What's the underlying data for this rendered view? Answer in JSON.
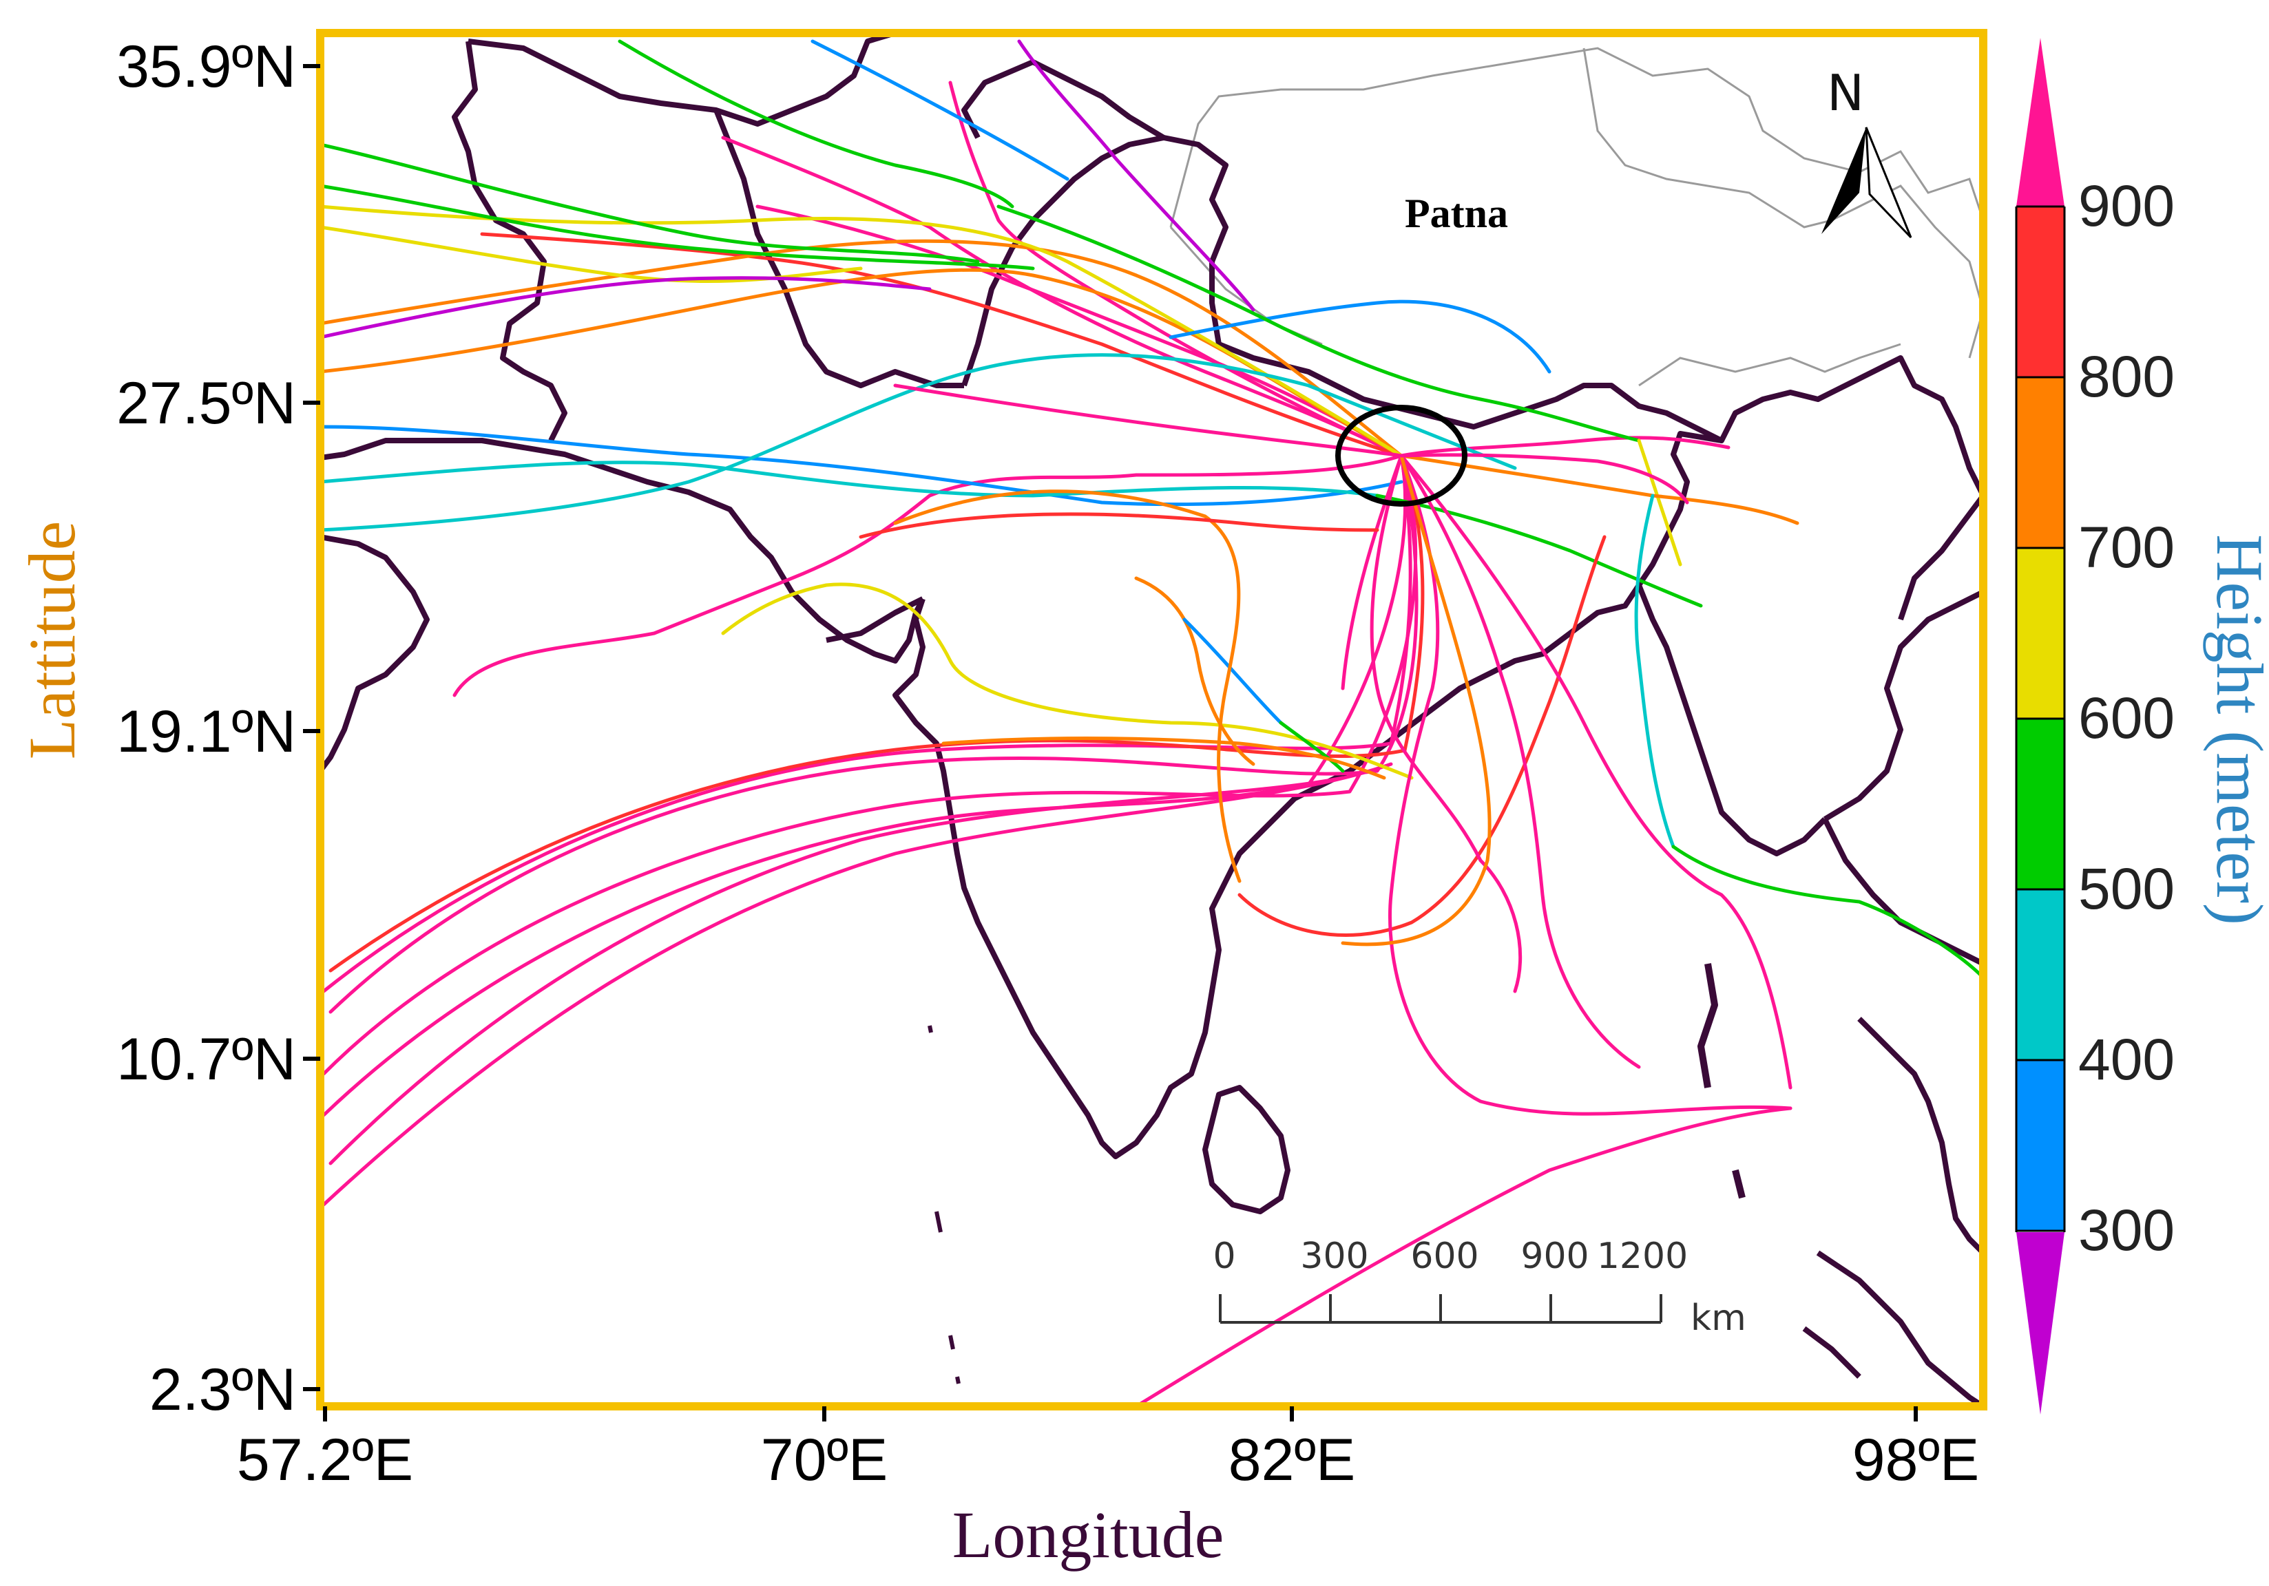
{
  "map": {
    "place_label": "Patna",
    "north_label": "N",
    "frame_color": "#F5C000",
    "coast_color": "#3A0A38",
    "border_color": "#9a9a9a"
  },
  "axes": {
    "y_title": "Lattitude",
    "x_title": "Longitude",
    "y_ticks": [
      "35.9ºN",
      "27.5ºN",
      "19.1ºN",
      "10.7ºN",
      "2.3ºN"
    ],
    "x_ticks": [
      "57.2ºE",
      "70ºE",
      "82ºE",
      "98ºE"
    ],
    "title_color": "#D98500"
  },
  "scale_bar": {
    "labels": [
      "0",
      "300",
      "600",
      "900",
      "1200"
    ],
    "unit": "km"
  },
  "colorbar": {
    "title": "Height (meter)",
    "title_color": "#2E86C1",
    "labels": [
      "900",
      "800",
      "700",
      "600",
      "500",
      "400",
      "300"
    ],
    "colors": [
      "#FF1493",
      "#FF3030",
      "#FF8000",
      "#E8DD00",
      "#00CC00",
      "#00C8C8",
      "#0090FF",
      "#C000D0"
    ]
  },
  "legend_levels": [
    {
      "label": "900",
      "color": "#FF1493"
    },
    {
      "label": "800",
      "color": "#FF3030"
    },
    {
      "label": "700",
      "color": "#FF8000"
    },
    {
      "label": "600",
      "color": "#E8DD00"
    },
    {
      "label": "500",
      "color": "#00CC00"
    },
    {
      "label": "400",
      "color": "#00C8C8"
    },
    {
      "label": "300",
      "color": "#0090FF"
    }
  ],
  "receptor": {
    "name": "Patna",
    "lat": 25.6,
    "lon": 85.1
  }
}
